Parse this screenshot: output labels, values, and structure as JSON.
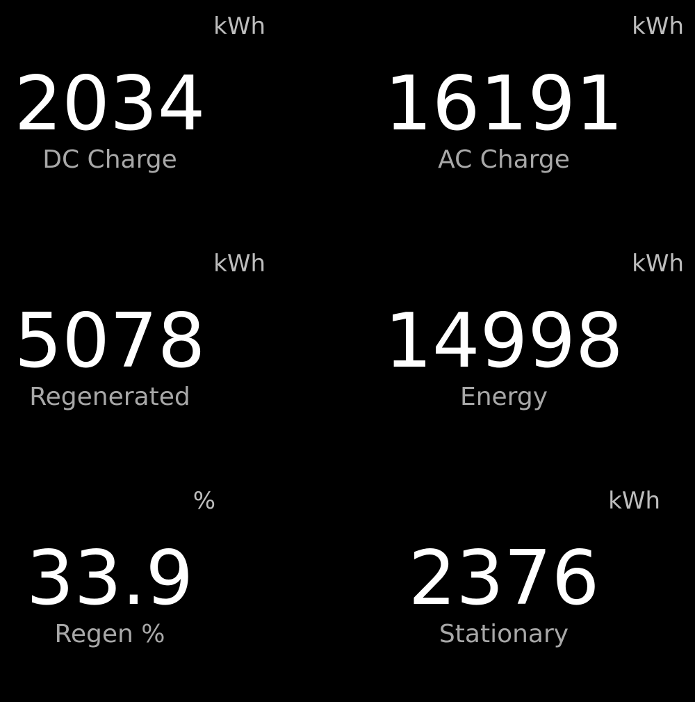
{
  "tiles": [
    {
      "unit": "kWh",
      "value": "2034",
      "label": "DC Charge"
    },
    {
      "unit": "kWh",
      "value": "16191",
      "label": "AC Charge"
    },
    {
      "unit": "kWh",
      "value": "5078",
      "label": "Regenerated"
    },
    {
      "unit": "kWh",
      "value": "14998",
      "label": "Energy"
    },
    {
      "unit": "%",
      "value": "33.9",
      "label": "Regen %"
    },
    {
      "unit": "kWh",
      "value": "2376",
      "label": "Stationary"
    }
  ],
  "colors": {
    "background": "#000000",
    "value": "#ffffff",
    "label": "#a8a8a8",
    "unit": "#bdbdbd"
  }
}
